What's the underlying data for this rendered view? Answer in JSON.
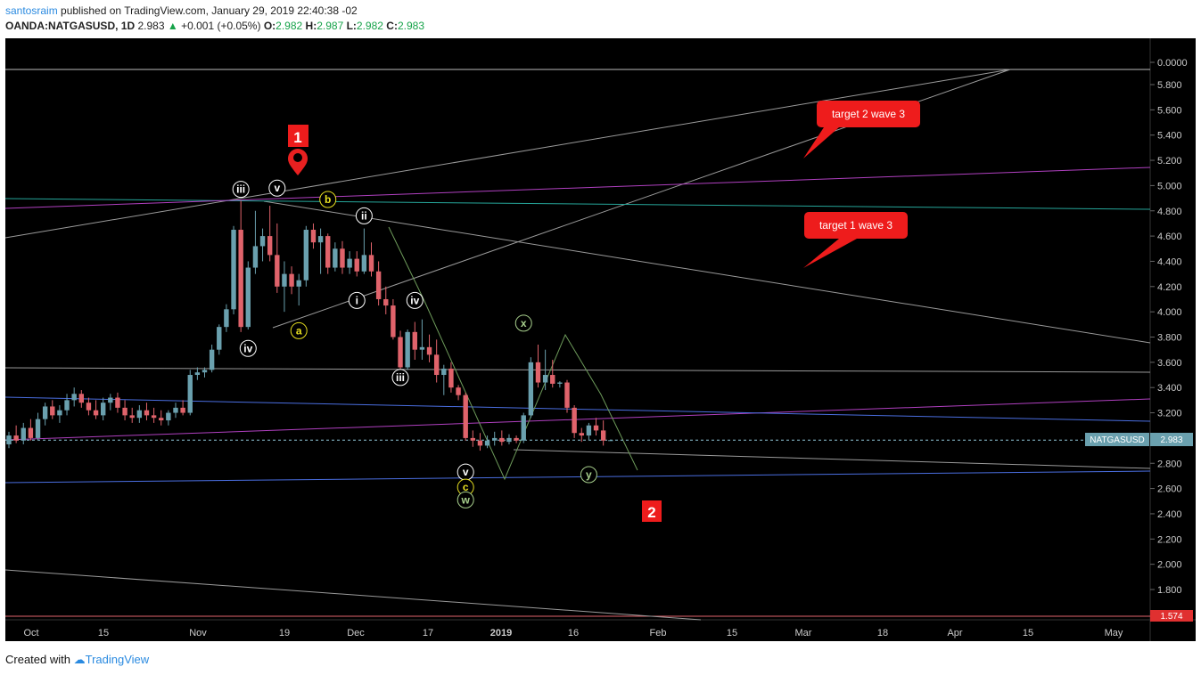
{
  "header": {
    "author": "santosraim",
    "published_text": "published on TradingView.com, January 29, 2019 22:40:38 -02",
    "symbol": "OANDA:NATGASUSD, 1D",
    "last": "2.983",
    "change": "+0.001 (+0.05%)",
    "open_label": "O:",
    "open": "2.982",
    "high_label": "H:",
    "high": "2.987",
    "low_label": "L:",
    "low": "2.982",
    "close_label": "C:",
    "close": "2.983"
  },
  "footer": {
    "created_with": "Created with",
    "brand": "TradingView"
  },
  "colors": {
    "background": "#000000",
    "up": "#6aa0ae",
    "down": "#e0636b",
    "price_line": "#8fc6d8",
    "callout": "#ff0000"
  },
  "chart_data": {
    "type": "candlestick",
    "symbol": "NATGASUSD",
    "last_price": 2.983,
    "price_label": "NATGASUSD",
    "price_value": "2.983",
    "y_ticks": [
      "0.0000",
      "5.800",
      "5.600",
      "5.400",
      "5.200",
      "5.000",
      "4.800",
      "4.600",
      "4.400",
      "4.200",
      "4.000",
      "3.800",
      "3.600",
      "3.400",
      "3.200",
      "3.000",
      "2.800",
      "2.600",
      "2.400",
      "2.200",
      "2.000",
      "1.800"
    ],
    "bottom_tick": "1.574",
    "ylim": [
      1.574,
      5.98
    ],
    "x_ticks": [
      "Oct",
      "15",
      "Nov",
      "19",
      "Dec",
      "17",
      "2019",
      "16",
      "Feb",
      "15",
      "Mar",
      "18",
      "Apr",
      "15",
      "May"
    ],
    "candles": [
      {
        "o": 2.95,
        "h": 3.05,
        "l": 2.92,
        "c": 3.02
      },
      {
        "o": 3.02,
        "h": 3.1,
        "l": 2.96,
        "c": 2.98
      },
      {
        "o": 2.98,
        "h": 3.12,
        "l": 2.95,
        "c": 3.08
      },
      {
        "o": 3.08,
        "h": 3.15,
        "l": 2.98,
        "c": 3.0
      },
      {
        "o": 3.0,
        "h": 3.2,
        "l": 2.98,
        "c": 3.15
      },
      {
        "o": 3.15,
        "h": 3.28,
        "l": 3.1,
        "c": 3.25
      },
      {
        "o": 3.25,
        "h": 3.3,
        "l": 3.15,
        "c": 3.18
      },
      {
        "o": 3.18,
        "h": 3.26,
        "l": 3.12,
        "c": 3.22
      },
      {
        "o": 3.22,
        "h": 3.35,
        "l": 3.18,
        "c": 3.3
      },
      {
        "o": 3.3,
        "h": 3.4,
        "l": 3.25,
        "c": 3.35
      },
      {
        "o": 3.35,
        "h": 3.38,
        "l": 3.24,
        "c": 3.28
      },
      {
        "o": 3.28,
        "h": 3.32,
        "l": 3.18,
        "c": 3.22
      },
      {
        "o": 3.22,
        "h": 3.3,
        "l": 3.15,
        "c": 3.18
      },
      {
        "o": 3.18,
        "h": 3.32,
        "l": 3.14,
        "c": 3.28
      },
      {
        "o": 3.28,
        "h": 3.35,
        "l": 3.22,
        "c": 3.32
      },
      {
        "o": 3.32,
        "h": 3.36,
        "l": 3.2,
        "c": 3.24
      },
      {
        "o": 3.24,
        "h": 3.3,
        "l": 3.14,
        "c": 3.18
      },
      {
        "o": 3.18,
        "h": 3.24,
        "l": 3.12,
        "c": 3.16
      },
      {
        "o": 3.16,
        "h": 3.26,
        "l": 3.12,
        "c": 3.22
      },
      {
        "o": 3.22,
        "h": 3.28,
        "l": 3.14,
        "c": 3.18
      },
      {
        "o": 3.18,
        "h": 3.24,
        "l": 3.12,
        "c": 3.16
      },
      {
        "o": 3.16,
        "h": 3.22,
        "l": 3.1,
        "c": 3.14
      },
      {
        "o": 3.14,
        "h": 3.22,
        "l": 3.1,
        "c": 3.2
      },
      {
        "o": 3.2,
        "h": 3.28,
        "l": 3.16,
        "c": 3.24
      },
      {
        "o": 3.24,
        "h": 3.3,
        "l": 3.18,
        "c": 3.2
      },
      {
        "o": 3.2,
        "h": 3.54,
        "l": 3.18,
        "c": 3.5
      },
      {
        "o": 3.5,
        "h": 3.56,
        "l": 3.46,
        "c": 3.52
      },
      {
        "o": 3.52,
        "h": 3.56,
        "l": 3.48,
        "c": 3.54
      },
      {
        "o": 3.54,
        "h": 3.74,
        "l": 3.52,
        "c": 3.7
      },
      {
        "o": 3.7,
        "h": 3.9,
        "l": 3.66,
        "c": 3.88
      },
      {
        "o": 3.88,
        "h": 4.06,
        "l": 3.84,
        "c": 4.02
      },
      {
        "o": 4.02,
        "h": 4.68,
        "l": 3.98,
        "c": 4.65
      },
      {
        "o": 4.65,
        "h": 4.88,
        "l": 3.84,
        "c": 3.88
      },
      {
        "o": 3.88,
        "h": 4.4,
        "l": 3.86,
        "c": 4.35
      },
      {
        "o": 4.35,
        "h": 4.8,
        "l": 4.3,
        "c": 4.52
      },
      {
        "o": 4.52,
        "h": 4.66,
        "l": 4.4,
        "c": 4.6
      },
      {
        "o": 4.6,
        "h": 4.84,
        "l": 4.4,
        "c": 4.45
      },
      {
        "o": 4.45,
        "h": 4.7,
        "l": 4.15,
        "c": 4.2
      },
      {
        "o": 4.2,
        "h": 4.4,
        "l": 4.0,
        "c": 4.3
      },
      {
        "o": 4.3,
        "h": 4.36,
        "l": 4.14,
        "c": 4.2
      },
      {
        "o": 4.2,
        "h": 4.3,
        "l": 4.05,
        "c": 4.25
      },
      {
        "o": 4.25,
        "h": 4.68,
        "l": 4.2,
        "c": 4.65
      },
      {
        "o": 4.65,
        "h": 4.7,
        "l": 4.5,
        "c": 4.55
      },
      {
        "o": 4.55,
        "h": 4.66,
        "l": 4.3,
        "c": 4.6
      },
      {
        "o": 4.6,
        "h": 4.62,
        "l": 4.3,
        "c": 4.35
      },
      {
        "o": 4.35,
        "h": 4.55,
        "l": 4.32,
        "c": 4.5
      },
      {
        "o": 4.5,
        "h": 4.56,
        "l": 4.3,
        "c": 4.35
      },
      {
        "o": 4.35,
        "h": 4.48,
        "l": 4.3,
        "c": 4.42
      },
      {
        "o": 4.42,
        "h": 4.48,
        "l": 4.28,
        "c": 4.32
      },
      {
        "o": 4.32,
        "h": 4.66,
        "l": 4.3,
        "c": 4.45
      },
      {
        "o": 4.45,
        "h": 4.55,
        "l": 4.28,
        "c": 4.32
      },
      {
        "o": 4.32,
        "h": 4.4,
        "l": 4.05,
        "c": 4.1
      },
      {
        "o": 4.1,
        "h": 4.2,
        "l": 3.98,
        "c": 4.05
      },
      {
        "o": 4.05,
        "h": 4.1,
        "l": 3.78,
        "c": 3.8
      },
      {
        "o": 3.8,
        "h": 3.85,
        "l": 3.52,
        "c": 3.56
      },
      {
        "o": 3.56,
        "h": 3.86,
        "l": 3.54,
        "c": 3.84
      },
      {
        "o": 3.84,
        "h": 3.92,
        "l": 3.62,
        "c": 3.7
      },
      {
        "o": 3.7,
        "h": 3.94,
        "l": 3.62,
        "c": 3.72
      },
      {
        "o": 3.72,
        "h": 3.82,
        "l": 3.6,
        "c": 3.66
      },
      {
        "o": 3.66,
        "h": 3.78,
        "l": 3.44,
        "c": 3.5
      },
      {
        "o": 3.5,
        "h": 3.58,
        "l": 3.34,
        "c": 3.55
      },
      {
        "o": 3.55,
        "h": 3.6,
        "l": 3.36,
        "c": 3.4
      },
      {
        "o": 3.4,
        "h": 3.42,
        "l": 3.3,
        "c": 3.34
      },
      {
        "o": 3.34,
        "h": 3.36,
        "l": 2.98,
        "c": 3.0
      },
      {
        "o": 3.0,
        "h": 3.06,
        "l": 2.93,
        "c": 2.98
      },
      {
        "o": 2.98,
        "h": 3.04,
        "l": 2.9,
        "c": 2.94
      },
      {
        "o": 2.94,
        "h": 3.02,
        "l": 2.92,
        "c": 2.98
      },
      {
        "o": 2.98,
        "h": 3.05,
        "l": 2.94,
        "c": 3.0
      },
      {
        "o": 3.0,
        "h": 3.06,
        "l": 2.94,
        "c": 2.97
      },
      {
        "o": 2.97,
        "h": 3.03,
        "l": 2.95,
        "c": 3.0
      },
      {
        "o": 3.0,
        "h": 3.02,
        "l": 2.96,
        "c": 2.98
      },
      {
        "o": 2.98,
        "h": 3.2,
        "l": 2.96,
        "c": 3.18
      },
      {
        "o": 3.18,
        "h": 3.64,
        "l": 3.16,
        "c": 3.6
      },
      {
        "o": 3.6,
        "h": 3.74,
        "l": 3.4,
        "c": 3.44
      },
      {
        "o": 3.44,
        "h": 3.7,
        "l": 3.38,
        "c": 3.5
      },
      {
        "o": 3.5,
        "h": 3.62,
        "l": 3.4,
        "c": 3.43
      },
      {
        "o": 3.43,
        "h": 3.45,
        "l": 3.4,
        "c": 3.44
      },
      {
        "o": 3.44,
        "h": 3.46,
        "l": 3.2,
        "c": 3.24
      },
      {
        "o": 3.24,
        "h": 3.26,
        "l": 3.0,
        "c": 3.04
      },
      {
        "o": 3.04,
        "h": 3.08,
        "l": 2.97,
        "c": 3.02
      },
      {
        "o": 3.02,
        "h": 3.12,
        "l": 2.98,
        "c": 3.1
      },
      {
        "o": 3.1,
        "h": 3.16,
        "l": 3.02,
        "c": 3.06
      },
      {
        "o": 3.06,
        "h": 3.14,
        "l": 2.94,
        "c": 2.98
      },
      {
        "o": 2.982,
        "h": 2.987,
        "l": 2.982,
        "c": 2.983
      }
    ],
    "wave_labels": [
      {
        "text": "iii",
        "i": 32,
        "p": 4.97,
        "color": "white"
      },
      {
        "text": "v",
        "i": 37,
        "p": 4.98,
        "color": "white"
      },
      {
        "text": "b",
        "i": 44,
        "p": 4.89,
        "color": "yellow"
      },
      {
        "text": "ii",
        "i": 49,
        "p": 4.76,
        "color": "white"
      },
      {
        "text": "i",
        "i": 48,
        "p": 4.09,
        "color": "white"
      },
      {
        "text": "iv",
        "i": 56,
        "p": 4.09,
        "color": "white"
      },
      {
        "text": "iv",
        "i": 33,
        "p": 3.71,
        "color": "white"
      },
      {
        "text": "a",
        "i": 40,
        "p": 3.85,
        "color": "yellow"
      },
      {
        "text": "iii",
        "i": 54,
        "p": 3.48,
        "color": "white"
      },
      {
        "text": "x",
        "i": 71,
        "p": 3.91,
        "color": "green"
      },
      {
        "text": "v",
        "i": 63,
        "p": 2.73,
        "color": "white"
      },
      {
        "text": "c",
        "i": 63,
        "p": 2.61,
        "color": "yellow"
      },
      {
        "text": "w",
        "i": 63,
        "p": 2.51,
        "color": "green"
      },
      {
        "text": "y",
        "i": 80,
        "p": 2.71,
        "color": "green"
      }
    ],
    "numbered_callouts": [
      "1",
      "2"
    ],
    "annotations": [
      "target 2 wave 3",
      "target 1 wave 3"
    ]
  }
}
